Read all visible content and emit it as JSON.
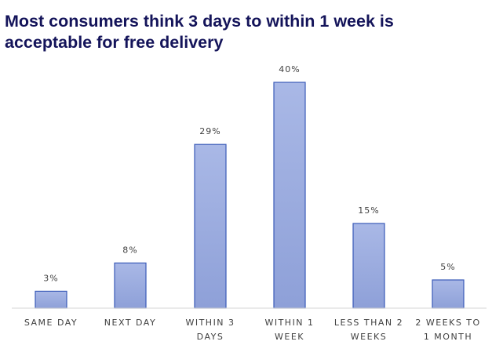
{
  "page": {
    "title": "Most consumers think 3 days to within 1 week is acceptable for free delivery"
  },
  "colors": {
    "title": "#14145a",
    "bar_top": "#a9b8e6",
    "bar_bottom": "#8ea0d8",
    "bar_stroke": "#3a5ab8",
    "axis": "#d4d4d4",
    "label": "#404040"
  },
  "chart_data": {
    "type": "bar",
    "title": "Most consumers think 3 days to within 1 week is acceptable for free delivery",
    "categories": [
      [
        "SAME DAY"
      ],
      [
        "NEXT DAY"
      ],
      [
        "WITHIN 3",
        "DAYS"
      ],
      [
        "WITHIN 1",
        "WEEK"
      ],
      [
        "LESS THAN 2",
        "WEEKS"
      ],
      [
        "2 WEEKS TO",
        "1 MONTH"
      ]
    ],
    "values": [
      3,
      8,
      29,
      40,
      15,
      5
    ],
    "value_labels": [
      "3%",
      "8%",
      "29%",
      "40%",
      "15%",
      "5%"
    ],
    "unit": "%",
    "xlabel": "",
    "ylabel": "",
    "ylim": [
      0,
      40
    ],
    "grid": false,
    "legend": "none"
  }
}
